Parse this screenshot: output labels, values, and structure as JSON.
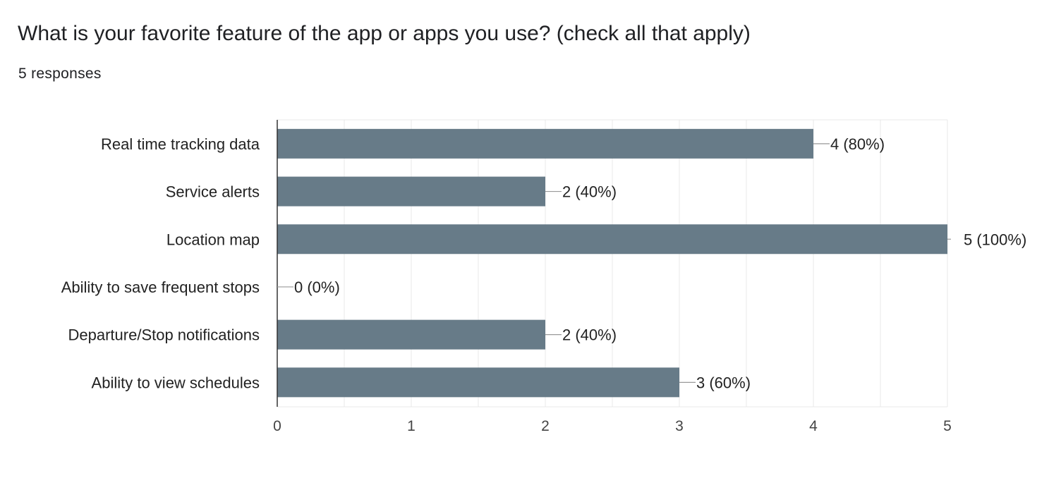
{
  "header": {
    "title": "What is your favorite feature of the app or apps you use? (check all that apply)",
    "responses": "5 responses"
  },
  "colors": {
    "bar": "#677b88",
    "grid": "#e8e8e8",
    "axis": "#333333",
    "leader": "#999999"
  },
  "chart_data": {
    "type": "bar",
    "orientation": "horizontal",
    "categories": [
      "Real time tracking data",
      "Service alerts",
      "Location map",
      "Ability to save frequent stops",
      "Departure/Stop notifications",
      "Ability to view schedules"
    ],
    "values": [
      4,
      2,
      5,
      0,
      2,
      3
    ],
    "data_labels": [
      "4 (80%)",
      "2 (40%)",
      "5 (100%)",
      "0 (0%)",
      "2 (40%)",
      "3 (60%)"
    ],
    "xlim": [
      0,
      5
    ],
    "xticks": [
      0,
      1,
      2,
      3,
      4,
      5
    ],
    "tick_labels": [
      "0",
      "1",
      "2",
      "3",
      "4",
      "5"
    ],
    "grid": true,
    "legend": "none"
  }
}
